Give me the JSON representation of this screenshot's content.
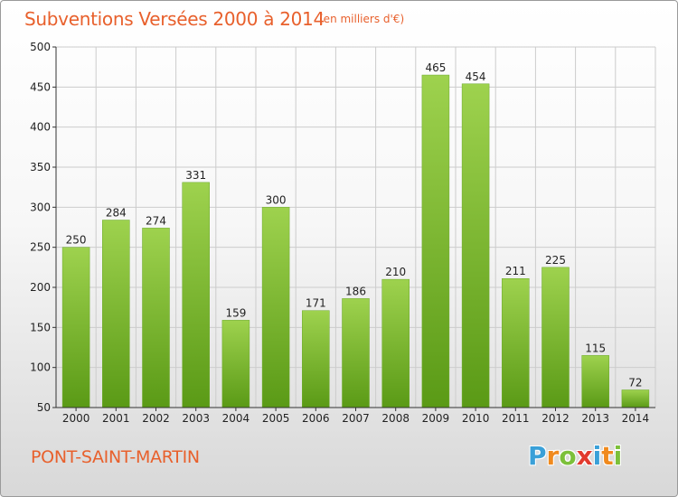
{
  "header": {
    "title": "Subventions Versées 2000 à 2014",
    "subtitle": "(en milliers d'€)"
  },
  "footer": {
    "commune": "PONT-SAINT-MARTIN",
    "logo_letters": [
      "P",
      "r",
      "o",
      "x",
      "i",
      "t",
      "i"
    ],
    "logo_colors": [
      "#3aa0d8",
      "#f08a1e",
      "#7cc03a",
      "#e23a2e",
      "#3aa0d8",
      "#f08a1e",
      "#7cc03a"
    ]
  },
  "colors": {
    "bar_top": "#9ed24e",
    "bar_bottom": "#5a9a16",
    "axis": "#333333",
    "grid": "#cccccc",
    "title": "#e8602c"
  },
  "chart_data": {
    "type": "bar",
    "title": "Subventions Versées 2000 à 2014",
    "subtitle": "(en milliers d'€)",
    "xlabel": "",
    "ylabel": "",
    "categories": [
      "2000",
      "2001",
      "2002",
      "2003",
      "2004",
      "2005",
      "2006",
      "2007",
      "2008",
      "2009",
      "2010",
      "2011",
      "2012",
      "2013",
      "2014"
    ],
    "values": [
      250,
      284,
      274,
      331,
      159,
      300,
      171,
      186,
      210,
      465,
      454,
      211,
      225,
      115,
      72
    ],
    "ylim": [
      50,
      500
    ],
    "yticks": [
      50,
      100,
      150,
      200,
      250,
      300,
      350,
      400,
      450,
      500
    ],
    "grid": true,
    "legend": "none"
  }
}
